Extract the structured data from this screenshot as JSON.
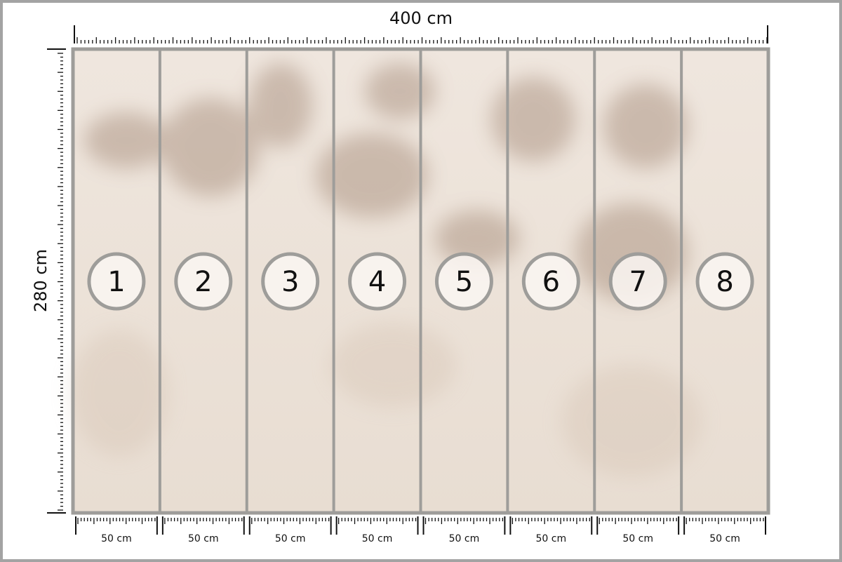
{
  "diagram": {
    "width_label": "400 cm",
    "height_label": "280 cm",
    "panel_width_label": "50 cm",
    "panels": [
      "1",
      "2",
      "3",
      "4",
      "5",
      "6",
      "7",
      "8"
    ],
    "colors": {
      "frame": "#a3a3a3",
      "panel_border": "#9e9d9a",
      "wall_base": "#ede3da",
      "flower": "#8a6a55",
      "ruler": "#111111"
    }
  }
}
